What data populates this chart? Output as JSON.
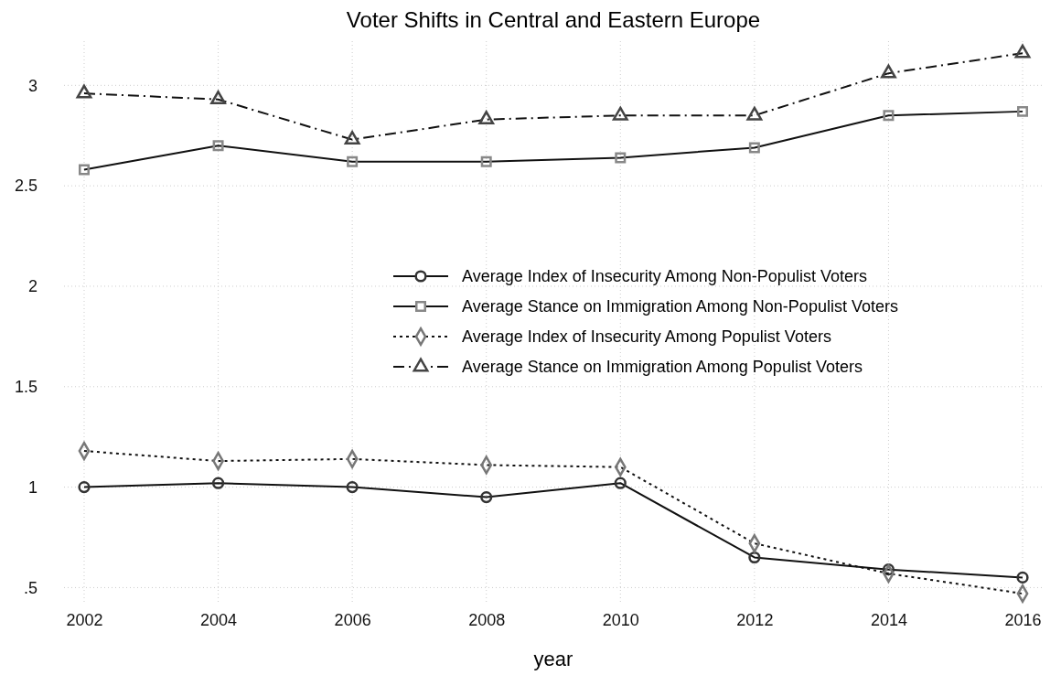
{
  "chart_data": {
    "type": "line",
    "title": "Voter Shifts in Central and Eastern Europe",
    "xlabel": "year",
    "x": [
      2002,
      2004,
      2006,
      2008,
      2010,
      2012,
      2014,
      2016
    ],
    "xlim": [
      2001.7,
      2016.3
    ],
    "xticks": [
      2002,
      2004,
      2006,
      2008,
      2010,
      2012,
      2014,
      2016
    ],
    "ylim": [
      0.42,
      3.22
    ],
    "yticks": [
      {
        "value": 0.5,
        "label": ".5"
      },
      1,
      1.5,
      2,
      2.5,
      3
    ],
    "grid": true,
    "legend": "right",
    "series": [
      {
        "name": "Average Index of Insecurity Among Non-Populist Voters",
        "color": "#333333",
        "marker": "circle",
        "line_style": "solid",
        "values": [
          1.0,
          1.02,
          1.0,
          0.95,
          1.02,
          0.65,
          0.59,
          0.55
        ]
      },
      {
        "name": "Average Stance on Immigration Among Non-Populist Voters",
        "color": "#888888",
        "marker": "square",
        "line_style": "solid",
        "values": [
          2.58,
          2.7,
          2.62,
          2.62,
          2.64,
          2.69,
          2.85,
          2.87
        ]
      },
      {
        "name": "Average Index of Insecurity Among Populist Voters",
        "color": "#777777",
        "marker": "diamond",
        "line_style": "dotted",
        "values": [
          1.18,
          1.13,
          1.14,
          1.11,
          1.1,
          0.72,
          0.57,
          0.47
        ]
      },
      {
        "name": "Average Stance on Immigration Among Populist Voters",
        "color": "#444444",
        "marker": "triangle",
        "line_style": "dashed",
        "values": [
          2.96,
          2.93,
          2.73,
          2.83,
          2.85,
          2.85,
          3.06,
          3.16
        ]
      }
    ]
  }
}
